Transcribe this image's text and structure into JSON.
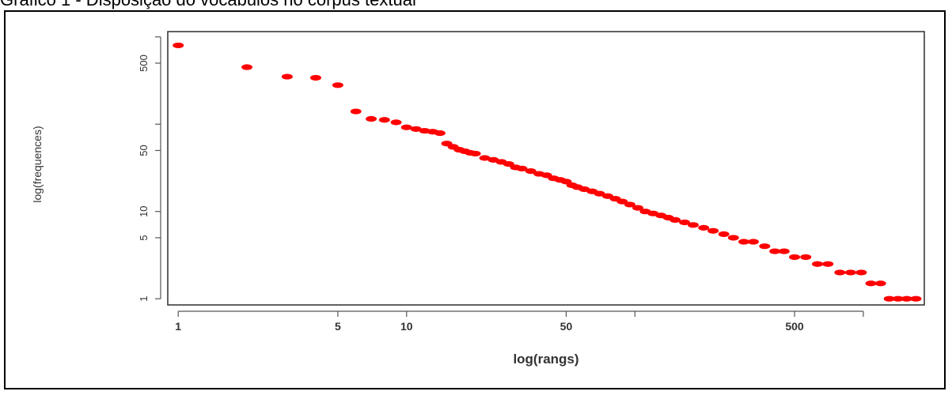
{
  "caption": "Gráfico 1 - Disposição do vocábulos no corpus textual",
  "chart_data": {
    "type": "scatter",
    "title": "",
    "xlabel": "log(rangs)",
    "ylabel": "log(frequences)",
    "xscale": "log",
    "yscale": "log",
    "xlim": [
      0.9,
      1850
    ],
    "ylim": [
      0.85,
      1150
    ],
    "x_ticks": [
      1,
      5,
      10,
      50,
      100,
      500,
      1000
    ],
    "x_tick_labels": [
      "1",
      "5",
      "10",
      "50",
      "",
      "500",
      ""
    ],
    "y_ticks": [
      1,
      5,
      10,
      50,
      100,
      500,
      1000
    ],
    "y_tick_labels": [
      "1",
      "5",
      "10",
      "50",
      "",
      "500",
      ""
    ],
    "marker_color": "#ff0000",
    "series": [
      {
        "points": [
          [
            1,
            800
          ],
          [
            2,
            450
          ],
          [
            3,
            350
          ],
          [
            4,
            340
          ],
          [
            5,
            280
          ],
          [
            6,
            140
          ],
          [
            7,
            115
          ],
          [
            8,
            112
          ],
          [
            9,
            105
          ],
          [
            10,
            92
          ],
          [
            11,
            88
          ],
          [
            12,
            84
          ],
          [
            13,
            82
          ],
          [
            14,
            79
          ],
          [
            15,
            60
          ],
          [
            16,
            55
          ],
          [
            17,
            51
          ],
          [
            18,
            49
          ],
          [
            19,
            47
          ],
          [
            20,
            46
          ],
          [
            22,
            41
          ],
          [
            24,
            39
          ],
          [
            26,
            37
          ],
          [
            28,
            35
          ],
          [
            30,
            32
          ],
          [
            32,
            31
          ],
          [
            35,
            29
          ],
          [
            38,
            27
          ],
          [
            41,
            26
          ],
          [
            44,
            24
          ],
          [
            47,
            23
          ],
          [
            50,
            22
          ],
          [
            53,
            20
          ],
          [
            56,
            19
          ],
          [
            60,
            18
          ],
          [
            65,
            17
          ],
          [
            70,
            16
          ],
          [
            76,
            15
          ],
          [
            82,
            14
          ],
          [
            88,
            13
          ],
          [
            95,
            12
          ],
          [
            103,
            11
          ],
          [
            111,
            10
          ],
          [
            120,
            9.5
          ],
          [
            130,
            9
          ],
          [
            140,
            8.5
          ],
          [
            150,
            8
          ],
          [
            165,
            7.5
          ],
          [
            180,
            7
          ],
          [
            200,
            6.5
          ],
          [
            220,
            6
          ],
          [
            245,
            5.5
          ],
          [
            270,
            5
          ],
          [
            300,
            4.5
          ],
          [
            330,
            4.5
          ],
          [
            370,
            4
          ],
          [
            410,
            3.5
          ],
          [
            450,
            3.5
          ],
          [
            500,
            3
          ],
          [
            560,
            3
          ],
          [
            630,
            2.5
          ],
          [
            700,
            2.5
          ],
          [
            790,
            2
          ],
          [
            880,
            2
          ],
          [
            980,
            2
          ],
          [
            1080,
            1.5
          ],
          [
            1190,
            1.5
          ],
          [
            1300,
            1
          ],
          [
            1420,
            1
          ],
          [
            1550,
            1
          ],
          [
            1700,
            1
          ]
        ]
      }
    ]
  }
}
